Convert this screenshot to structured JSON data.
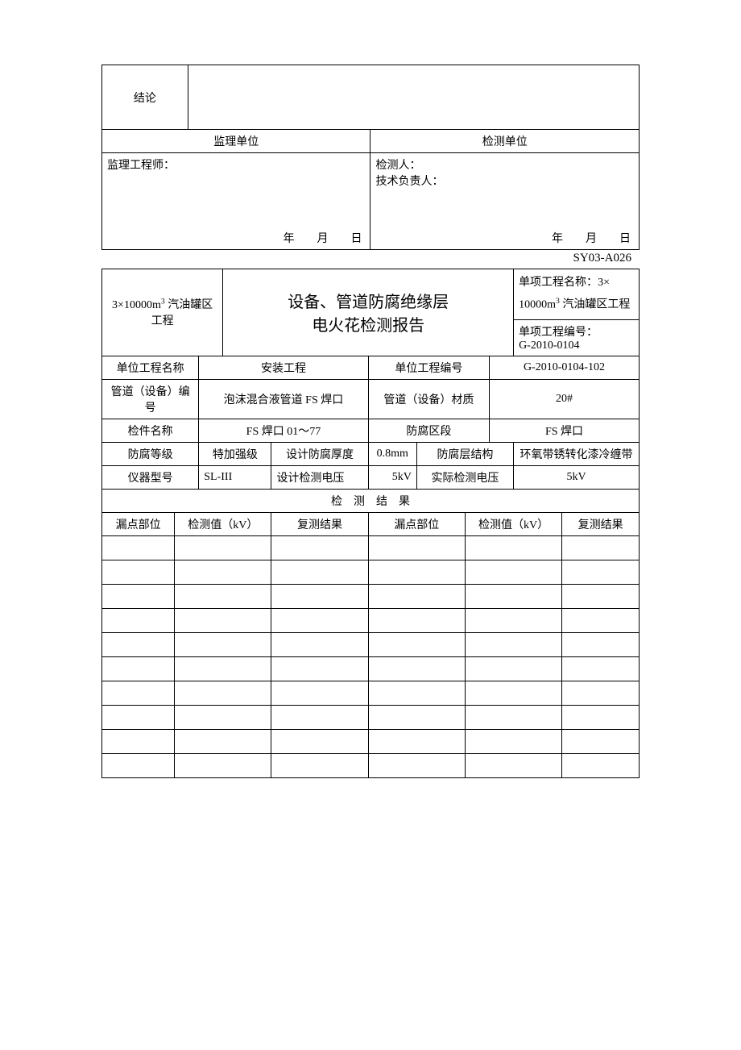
{
  "table1": {
    "conclusion_label": "结论",
    "jl_unit_label": "监理单位",
    "jc_unit_label": "检测单位",
    "jl_engineer_label": "监理工程师：",
    "jc_person_label": "检测人：",
    "tech_lead_label": "技术负责人：",
    "date_y": "年",
    "date_m": "月",
    "date_d": "日"
  },
  "doc_code": "SY03-A026",
  "table2": {
    "project_scope": "3×10000m³ 汽油罐区工程",
    "title_line1": "设备、管道防腐绝缘层",
    "title_line2": "电火花检测报告",
    "sub_name_label": "单项工程名称：",
    "sub_name_prefix": "3×",
    "sub_name_line2": "10000m³ 汽油罐区工程",
    "sub_no_label": "单项工程编号：",
    "sub_no_value": "G-2010-0104",
    "rows": {
      "unit_name_label": "单位工程名称",
      "unit_name_value": "安装工程",
      "unit_no_label": "单位工程编号",
      "unit_no_value": "G-2010-0104-102",
      "pipe_no_label": "管道（设备）编号",
      "pipe_no_value": "泡沫混合液管道 FS 焊口",
      "pipe_mat_label": "管道（设备）材质",
      "pipe_mat_value": "20#",
      "part_name_label": "检件名称",
      "part_name_value": "FS 焊口 01～77",
      "section_label": "防腐区段",
      "section_value": "FS 焊口",
      "grade_label": "防腐等级",
      "grade_value": "特加强级",
      "thickness_label": "设计防腐厚度",
      "thickness_value": "0.8mm",
      "struct_label": "防腐层结构",
      "struct_value": "环氧带锈转化漆冷缠带",
      "device_label": "仪器型号",
      "device_value": "SL-III",
      "design_v_label": "设计检测电压",
      "design_v_value": "5kV",
      "actual_v_label": "实际检测电压",
      "actual_v_value": "5kV"
    },
    "result_header": "检　测　结　果",
    "result_cols": {
      "c1": "漏点部位",
      "c2": "检测值（kV）",
      "c3": "复测结果",
      "c4": "漏点部位",
      "c5": "检测值（kV）",
      "c6": "复测结果"
    },
    "empty_rows": 10
  },
  "styles": {
    "background_color": "#ffffff",
    "text_color": "#000000",
    "border_color": "#000000",
    "font_family": "SimSun",
    "base_fontsize": 14,
    "title_fontsize": 20
  }
}
